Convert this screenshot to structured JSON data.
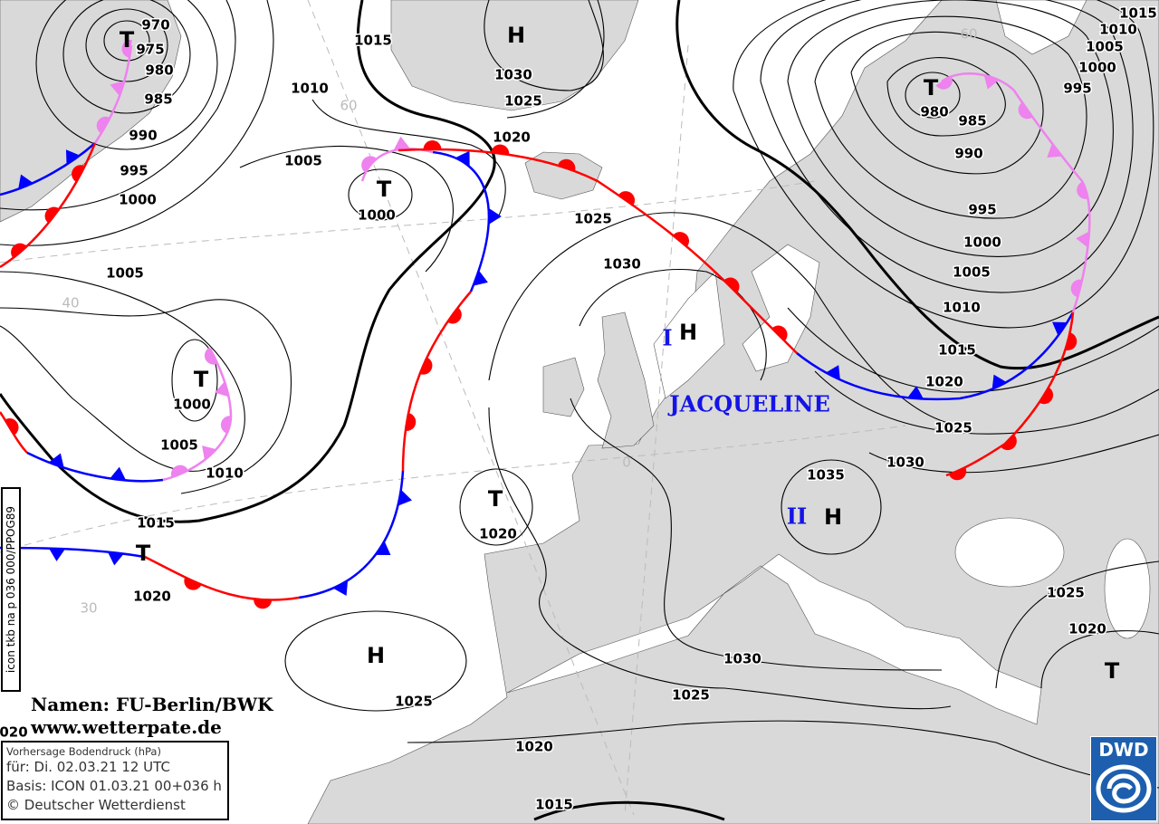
{
  "map": {
    "type": "surface pressure analysis/forecast",
    "colors": {
      "land": "#d9d9d9",
      "sea": "#ffffff",
      "warm_front": "#ff0000",
      "cold_front": "#0000ff",
      "occlusion": "#ee82ee",
      "storm_name": "#1414e6"
    },
    "isobar_labels": [
      "970",
      "975",
      "980",
      "985",
      "990",
      "995",
      "1000",
      "1005",
      "1010",
      "1015",
      "1005",
      "1000",
      "1030",
      "1025",
      "1020",
      "1025",
      "1030",
      "1000",
      "1005",
      "1010",
      "1015",
      "1020",
      "1020",
      "1025",
      "1030",
      "1025",
      "1020",
      "1015",
      "980",
      "985",
      "990",
      "995",
      "1000",
      "1005",
      "1010",
      "1015",
      "1020",
      "1025",
      "1030",
      "1035",
      "1025",
      "1020",
      "1015",
      "1010",
      "1005",
      "1000",
      "995",
      "020"
    ],
    "pressure_centers": [
      "T",
      "T",
      "T",
      "T",
      "T",
      "T",
      "T",
      "H",
      "H",
      "H",
      "H"
    ],
    "grid_labels": [
      "60",
      "40",
      "30",
      "0",
      "60"
    ],
    "system_names": [
      "I",
      "JACQUELINE",
      "II"
    ]
  },
  "credits": {
    "line1": "Namen: FU-Berlin/BWK",
    "line2": "www.wetterpate.de"
  },
  "info": {
    "title": "Vorhersage Bodendruck (hPa)",
    "valid": "für:  Di. 02.03.21  12 UTC",
    "basis": "Basis: ICON  01.03.21 00+036 h",
    "copyright": "© Deutscher Wetterdienst"
  },
  "side_label": "icon tkb na p 036 000/PPOG89",
  "logo": {
    "text": "DWD",
    "icon": "dwd-spiral-logo"
  }
}
